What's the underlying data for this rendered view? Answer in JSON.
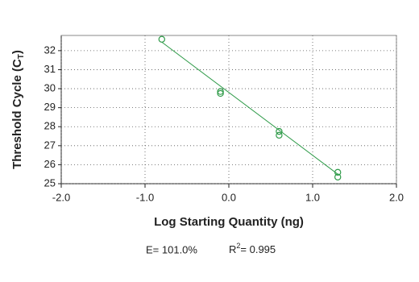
{
  "chart_data": {
    "type": "scatter",
    "xlabel": "Log Starting Quantity (ng)",
    "ylabel": "Threshold Cycle (C",
    "ylabel_sub": "T",
    "ylabel_end": ")",
    "efficiency": "E= 101.0%",
    "r_label": "R",
    "r_sup": "2",
    "r_value": "= 0.995",
    "color": "#2e9a48",
    "x": [
      -0.8,
      -0.1,
      -0.1,
      0.6,
      0.6,
      1.3,
      1.3
    ],
    "values": [
      32.6,
      29.85,
      29.75,
      27.75,
      27.55,
      25.6,
      25.35
    ],
    "fit": {
      "x": [
        -0.8,
        1.3
      ],
      "values": [
        32.45,
        25.5
      ]
    },
    "xlim": [
      -2,
      2
    ],
    "xticks": [
      {
        "value": -2,
        "label": "-2.0"
      },
      {
        "value": -1,
        "label": "-1.0"
      },
      {
        "value": 0,
        "label": "0.0"
      },
      {
        "value": 1,
        "label": "1.0"
      },
      {
        "value": 2,
        "label": "2.0"
      }
    ],
    "ylim": [
      25,
      32.8
    ],
    "yticks": [
      25,
      26,
      27,
      28,
      29,
      30,
      31,
      32
    ],
    "grid": true
  }
}
